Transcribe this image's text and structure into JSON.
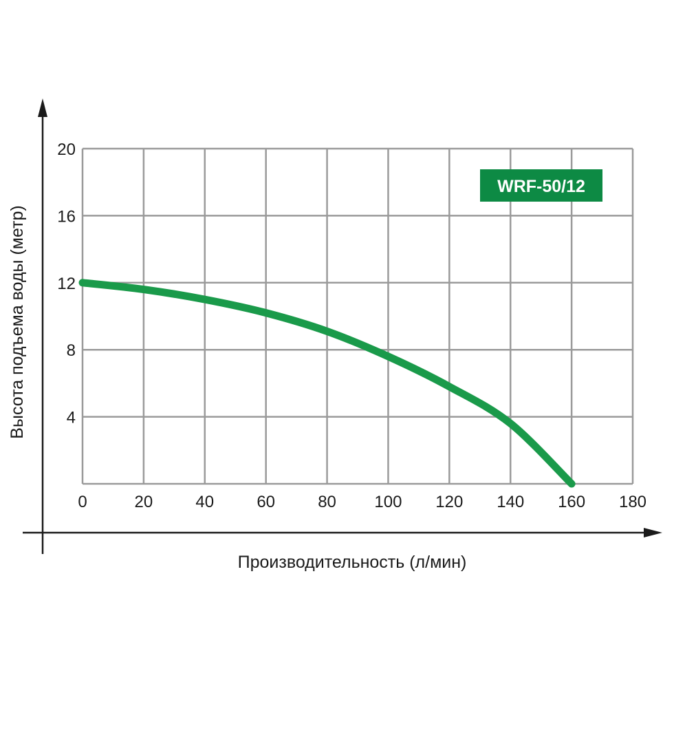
{
  "colors": {
    "curve": "#1a9a4a",
    "badge": "#0d8a44",
    "grid": "#9a9a9a",
    "axis": "#1a1a1a"
  },
  "chart_data": {
    "type": "line",
    "title": "",
    "legend": "WRF-50/12",
    "legend_position": "top-right",
    "xlabel": "Производительность (л/мин)",
    "ylabel": "Высота подъема воды (метр)",
    "xlim": [
      0,
      180
    ],
    "ylim": [
      0,
      20
    ],
    "x_ticks": [
      0,
      20,
      40,
      60,
      80,
      100,
      120,
      140,
      160,
      180
    ],
    "y_ticks": [
      4,
      8,
      12,
      16,
      20
    ],
    "grid": true,
    "series": [
      {
        "name": "WRF-50/12",
        "x": [
          0,
          20,
          40,
          60,
          80,
          100,
          120,
          140,
          160
        ],
        "y": [
          12,
          11.6,
          11,
          10.2,
          9.1,
          7.6,
          5.8,
          3.6,
          0
        ]
      }
    ]
  }
}
